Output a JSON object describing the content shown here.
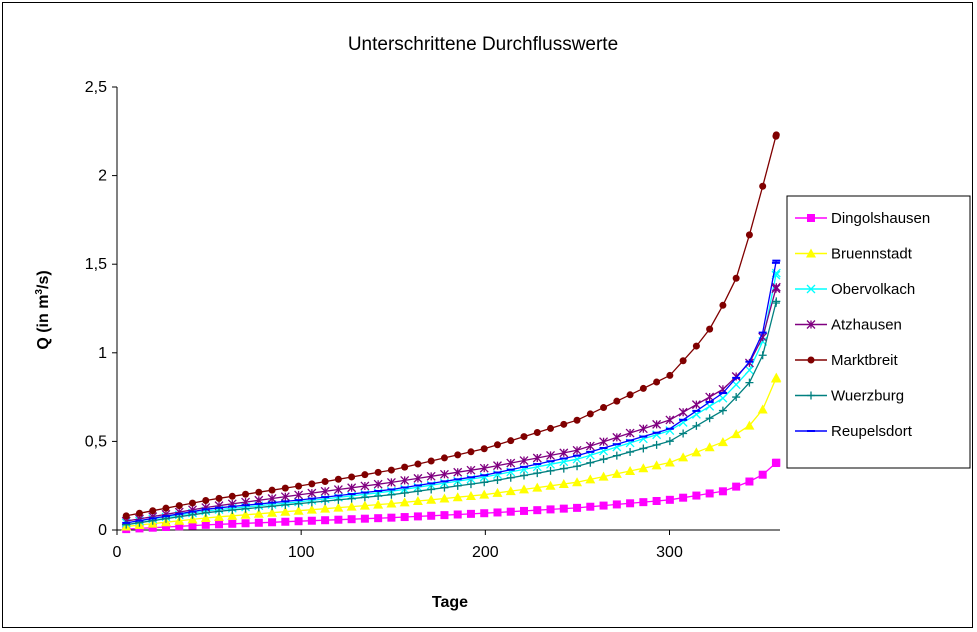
{
  "chart_data": {
    "type": "line",
    "title": "Unterschrittene Durchflusswerte",
    "xlabel": "Tage",
    "ylabel": "Q (in m³/s)",
    "xlim": [
      0,
      360
    ],
    "ylim": [
      0,
      2.5
    ],
    "x_ticks": [
      "0",
      "100",
      "200",
      "300"
    ],
    "y_ticks": [
      "0",
      "0,5",
      "1",
      "1,5",
      "2",
      "2,5"
    ],
    "grid": false,
    "legend_position": "right",
    "series": [
      {
        "name": "Dingolshausen",
        "color": "#ff00ff",
        "marker": "square",
        "points": [
          [
            5,
            0.005
          ],
          [
            50,
            0.03
          ],
          [
            100,
            0.05
          ],
          [
            150,
            0.07
          ],
          [
            200,
            0.095
          ],
          [
            250,
            0.125
          ],
          [
            300,
            0.17
          ],
          [
            330,
            0.22
          ],
          [
            345,
            0.28
          ],
          [
            352,
            0.32
          ],
          [
            358,
            0.38
          ]
        ]
      },
      {
        "name": "Bruennstadt",
        "color": "#ffff00",
        "marker": "triangle",
        "points": [
          [
            5,
            0.02
          ],
          [
            50,
            0.07
          ],
          [
            100,
            0.11
          ],
          [
            150,
            0.15
          ],
          [
            200,
            0.2
          ],
          [
            250,
            0.27
          ],
          [
            300,
            0.38
          ],
          [
            330,
            0.5
          ],
          [
            345,
            0.6
          ],
          [
            352,
            0.7
          ],
          [
            358,
            0.86
          ]
        ]
      },
      {
        "name": "Obervolkach",
        "color": "#00ffff",
        "marker": "x",
        "points": [
          [
            5,
            0.04
          ],
          [
            50,
            0.11
          ],
          [
            100,
            0.16
          ],
          [
            150,
            0.22
          ],
          [
            200,
            0.3
          ],
          [
            250,
            0.4
          ],
          [
            300,
            0.56
          ],
          [
            330,
            0.75
          ],
          [
            345,
            0.92
          ],
          [
            352,
            1.1
          ],
          [
            358,
            1.45
          ]
        ]
      },
      {
        "name": "Atzhausen",
        "color": "#800080",
        "marker": "star",
        "points": [
          [
            5,
            0.05
          ],
          [
            50,
            0.13
          ],
          [
            100,
            0.2
          ],
          [
            150,
            0.27
          ],
          [
            200,
            0.35
          ],
          [
            250,
            0.45
          ],
          [
            300,
            0.62
          ],
          [
            330,
            0.8
          ],
          [
            345,
            0.96
          ],
          [
            352,
            1.12
          ],
          [
            358,
            1.37
          ]
        ]
      },
      {
        "name": "Marktbreit",
        "color": "#800000",
        "marker": "circle",
        "points": [
          [
            5,
            0.08
          ],
          [
            50,
            0.17
          ],
          [
            100,
            0.25
          ],
          [
            150,
            0.34
          ],
          [
            200,
            0.46
          ],
          [
            250,
            0.62
          ],
          [
            300,
            0.87
          ],
          [
            320,
            1.1
          ],
          [
            335,
            1.38
          ],
          [
            345,
            1.72
          ],
          [
            358,
            2.23
          ]
        ]
      },
      {
        "name": "Wuerzburg",
        "color": "#008080",
        "marker": "plus",
        "points": [
          [
            5,
            0.03
          ],
          [
            50,
            0.1
          ],
          [
            100,
            0.15
          ],
          [
            150,
            0.2
          ],
          [
            200,
            0.27
          ],
          [
            250,
            0.36
          ],
          [
            300,
            0.5
          ],
          [
            330,
            0.68
          ],
          [
            345,
            0.85
          ],
          [
            352,
            1.02
          ],
          [
            358,
            1.29
          ]
        ]
      },
      {
        "name": "Reupelsdort",
        "color": "#0000ff",
        "marker": "dash",
        "points": [
          [
            5,
            0.04
          ],
          [
            50,
            0.12
          ],
          [
            100,
            0.17
          ],
          [
            150,
            0.23
          ],
          [
            200,
            0.31
          ],
          [
            250,
            0.42
          ],
          [
            300,
            0.57
          ],
          [
            330,
            0.78
          ],
          [
            345,
            0.97
          ],
          [
            352,
            1.15
          ],
          [
            358,
            1.52
          ]
        ]
      }
    ]
  }
}
